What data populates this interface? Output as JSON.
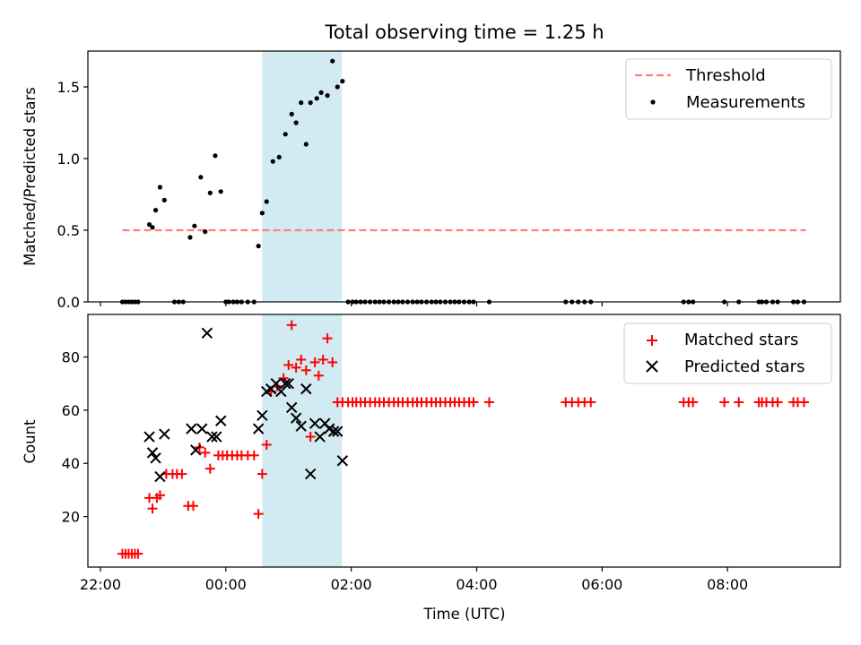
{
  "figure": {
    "title": "Total observing time = 1.25 h",
    "xlabel": "Time (UTC)",
    "x_ticks": [
      {
        "value": -2,
        "label": "22:00"
      },
      {
        "value": 0,
        "label": "00:00"
      },
      {
        "value": 2,
        "label": "02:00"
      },
      {
        "value": 4,
        "label": "04:00"
      },
      {
        "value": 6,
        "label": "06:00"
      },
      {
        "value": 8,
        "label": "08:00"
      }
    ],
    "xlim": [
      -2.2,
      9.8
    ],
    "shaded_interval": {
      "x_start": 0.58,
      "x_end": 1.85,
      "color": "#add8e6"
    }
  },
  "chart_data": [
    {
      "type": "scatter",
      "ylabel": "Matched/Predicted stars",
      "ylim": [
        0,
        1.75
      ],
      "y_ticks": [
        {
          "value": 0,
          "label": "0.0"
        },
        {
          "value": 0.5,
          "label": "0.5"
        },
        {
          "value": 1,
          "label": "1.0"
        },
        {
          "value": 1.5,
          "label": "1.5"
        }
      ],
      "legend_position": "upper right",
      "threshold": {
        "name": "Threshold",
        "y": 0.5,
        "x_range": [
          -1.65,
          9.25
        ],
        "color": "#ff7f7f",
        "style": "dashed"
      },
      "series": [
        {
          "name": "Measurements",
          "color": "#000000",
          "marker": "dot",
          "x": [
            -1.65,
            -1.6,
            -1.55,
            -1.5,
            -1.45,
            -1.4,
            -1.22,
            -1.17,
            -1.12,
            -1.05,
            -0.98,
            -0.82,
            -0.75,
            -0.68,
            -0.57,
            -0.5,
            -0.4,
            -0.33,
            -0.25,
            -0.17,
            -0.08,
            0.0,
            0.05,
            0.12,
            0.18,
            0.25,
            0.35,
            0.45,
            0.52,
            0.58,
            0.65,
            0.75,
            0.85,
            0.95,
            1.05,
            1.12,
            1.2,
            1.28,
            1.35,
            1.45,
            1.52,
            1.62,
            1.7,
            1.78,
            1.86,
            1.95,
            2.02,
            2.08,
            2.15,
            2.22,
            2.3,
            2.38,
            2.45,
            2.52,
            2.6,
            2.68,
            2.75,
            2.82,
            2.9,
            2.98,
            3.05,
            3.12,
            3.2,
            3.28,
            3.35,
            3.42,
            3.5,
            3.58,
            3.65,
            3.72,
            3.8,
            3.88,
            3.95,
            4.2,
            5.42,
            5.52,
            5.62,
            5.72,
            5.82,
            7.3,
            7.38,
            7.45,
            7.95,
            8.18,
            8.5,
            8.55,
            8.62,
            8.72,
            8.8,
            9.05,
            9.12,
            9.22
          ],
          "y": [
            0,
            0,
            0,
            0,
            0,
            0,
            0.54,
            0.52,
            0.64,
            0.8,
            0.71,
            0,
            0,
            0,
            0.45,
            0.53,
            0.87,
            0.49,
            0.76,
            1.02,
            0.77,
            0,
            0,
            0,
            0,
            0,
            0,
            0,
            0.39,
            0.62,
            0.7,
            0.98,
            1.01,
            1.17,
            1.31,
            1.25,
            1.39,
            1.1,
            1.39,
            1.42,
            1.46,
            1.44,
            1.68,
            1.5,
            1.54,
            0,
            0,
            0,
            0,
            0,
            0,
            0,
            0,
            0,
            0,
            0,
            0,
            0,
            0,
            0,
            0,
            0,
            0,
            0,
            0,
            0,
            0,
            0,
            0,
            0,
            0,
            0,
            0,
            0,
            0,
            0,
            0,
            0,
            0,
            0,
            0,
            0,
            0,
            0,
            0,
            0,
            0,
            0,
            0,
            0,
            0,
            0
          ]
        }
      ]
    },
    {
      "type": "scatter",
      "ylabel": "Count",
      "ylim": [
        1,
        96
      ],
      "y_ticks": [
        {
          "value": 20,
          "label": "20"
        },
        {
          "value": 40,
          "label": "40"
        },
        {
          "value": 60,
          "label": "60"
        },
        {
          "value": 80,
          "label": "80"
        }
      ],
      "legend_position": "upper right",
      "series": [
        {
          "name": "Matched stars",
          "color": "#ff0000",
          "marker": "plus",
          "x": [
            -1.65,
            -1.6,
            -1.55,
            -1.5,
            -1.45,
            -1.4,
            -1.22,
            -1.17,
            -1.1,
            -1.05,
            -0.95,
            -0.85,
            -0.78,
            -0.7,
            -0.6,
            -0.52,
            -0.42,
            -0.33,
            -0.25,
            -0.12,
            -0.05,
            0.02,
            0.1,
            0.18,
            0.25,
            0.35,
            0.45,
            0.52,
            0.58,
            0.65,
            0.72,
            0.82,
            0.92,
            1.0,
            1.05,
            1.12,
            1.2,
            1.28,
            1.35,
            1.42,
            1.48,
            1.55,
            1.62,
            1.7,
            1.78,
            1.86,
            1.95,
            2.02,
            2.08,
            2.15,
            2.22,
            2.3,
            2.38,
            2.45,
            2.52,
            2.6,
            2.68,
            2.75,
            2.82,
            2.9,
            2.98,
            3.05,
            3.12,
            3.2,
            3.28,
            3.35,
            3.42,
            3.5,
            3.58,
            3.65,
            3.72,
            3.8,
            3.88,
            3.95,
            4.2,
            5.42,
            5.52,
            5.62,
            5.72,
            5.82,
            7.3,
            7.38,
            7.45,
            7.95,
            8.18,
            8.5,
            8.55,
            8.62,
            8.72,
            8.8,
            9.05,
            9.12,
            9.22
          ],
          "y": [
            6,
            6,
            6,
            6,
            6,
            6,
            27,
            23,
            27,
            28,
            36,
            36,
            36,
            36,
            24,
            24,
            46,
            44,
            38,
            43,
            43,
            43,
            43,
            43,
            43,
            43,
            43,
            21,
            36,
            47,
            67,
            69,
            72,
            77,
            92,
            76,
            79,
            75,
            50,
            78,
            73,
            79,
            87,
            78,
            63,
            63,
            63,
            63,
            63,
            63,
            63,
            63,
            63,
            63,
            63,
            63,
            63,
            63,
            63,
            63,
            63,
            63,
            63,
            63,
            63,
            63,
            63,
            63,
            63,
            63,
            63,
            63,
            63,
            63,
            63,
            63,
            63,
            63,
            63,
            63,
            63,
            63,
            63,
            63,
            63,
            63,
            63,
            63,
            63,
            63,
            63,
            63,
            63
          ]
        },
        {
          "name": "Predicted stars",
          "color": "#000000",
          "marker": "x",
          "x": [
            -1.22,
            -1.17,
            -1.12,
            -1.05,
            -0.98,
            -0.55,
            -0.48,
            -0.38,
            -0.3,
            -0.22,
            -0.15,
            -0.08,
            0.52,
            0.58,
            0.65,
            0.72,
            0.8,
            0.88,
            0.95,
            1.0,
            1.05,
            1.12,
            1.2,
            1.28,
            1.35,
            1.42,
            1.5,
            1.58,
            1.65,
            1.72,
            1.78,
            1.86
          ],
          "y": [
            50,
            44,
            42,
            35,
            51,
            53,
            45,
            53,
            89,
            50,
            50,
            56,
            53,
            58,
            67,
            68,
            70,
            67,
            70,
            70,
            61,
            57,
            54,
            68,
            36,
            55,
            50,
            55,
            53,
            52,
            52,
            41
          ]
        }
      ]
    }
  ]
}
